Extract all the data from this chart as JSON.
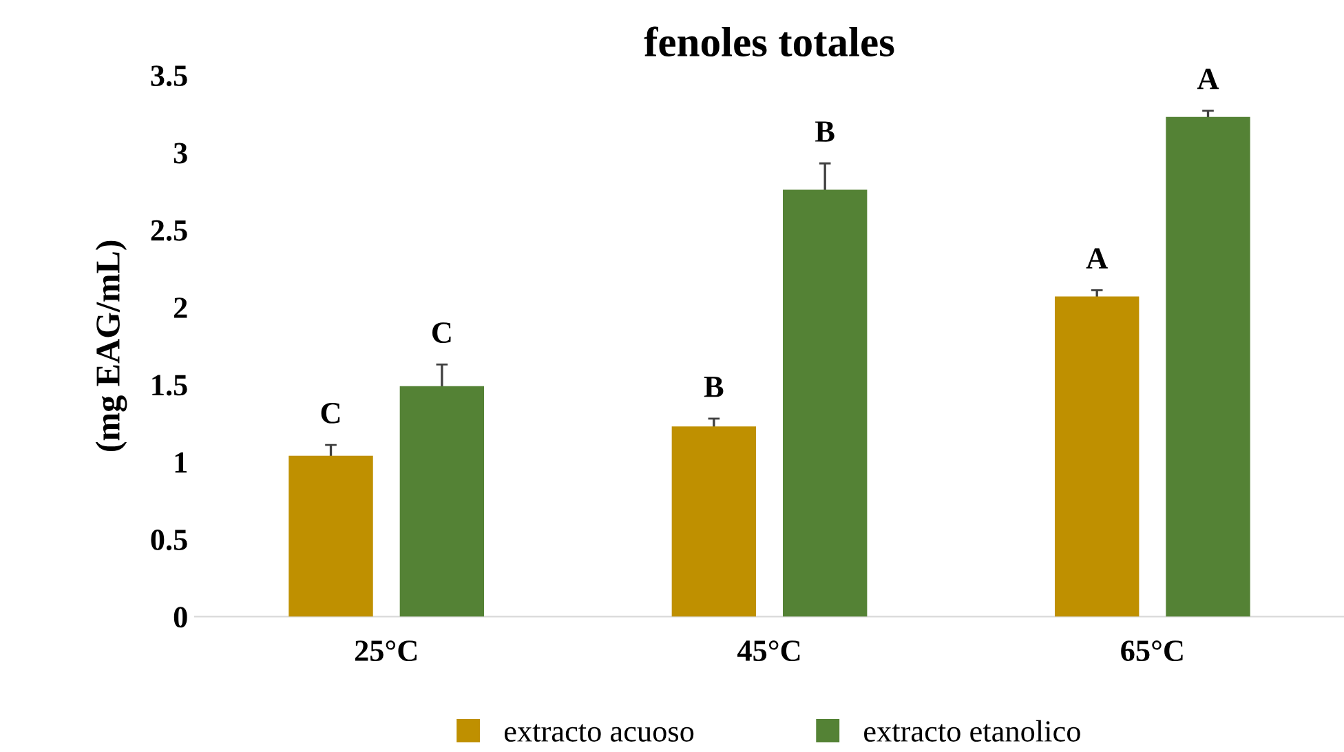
{
  "chart_data": {
    "type": "bar",
    "title": "fenoles totales",
    "ylabel": "(mg EAG/mL)",
    "categories": [
      "25°C",
      "45°C",
      "65°C"
    ],
    "series": [
      {
        "name": "extracto acuoso",
        "color": "#bf9000",
        "values": [
          1.04,
          1.23,
          2.07
        ],
        "errors": [
          0.07,
          0.05,
          0.04
        ],
        "value_labels": [
          "C",
          "B",
          "A"
        ]
      },
      {
        "name": "extracto etanolico",
        "color": "#548235",
        "values": [
          1.49,
          2.76,
          3.23
        ],
        "errors": [
          0.14,
          0.17,
          0.04
        ],
        "value_labels": [
          "C",
          "B",
          "A"
        ]
      }
    ],
    "ylim": [
      0,
      3.5
    ],
    "yticks": [
      0,
      0.5,
      1,
      1.5,
      2,
      2.5,
      3,
      3.5
    ],
    "grid": false,
    "legend": "bottom"
  }
}
